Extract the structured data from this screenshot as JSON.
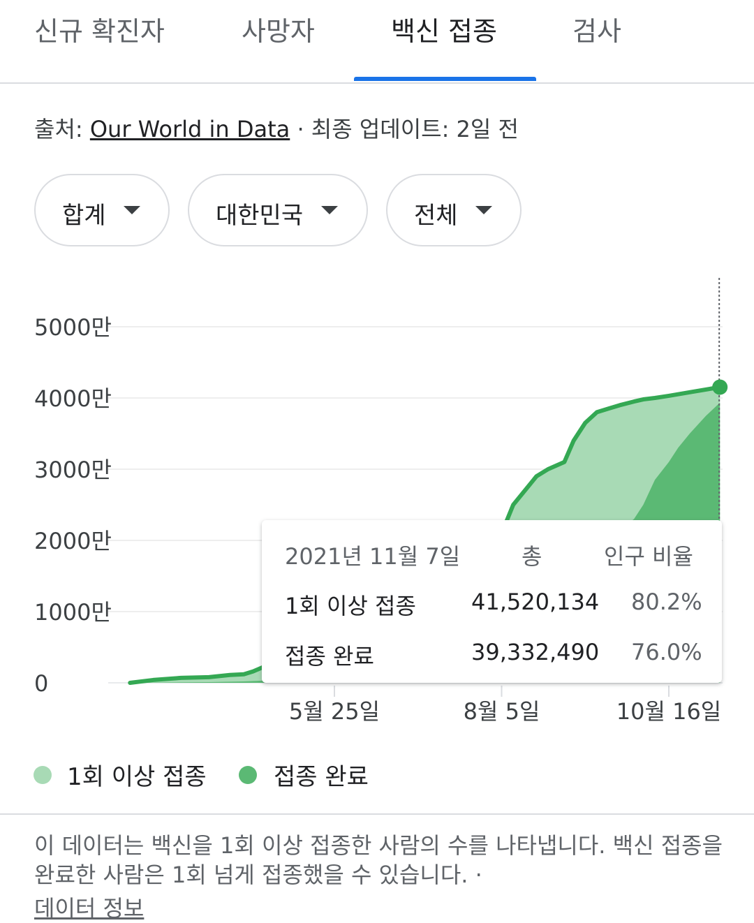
{
  "tabs": [
    {
      "label": "신규 확진자"
    },
    {
      "label": "사망자"
    },
    {
      "label": "백신 접종"
    },
    {
      "label": "검사"
    }
  ],
  "source": {
    "prefix": "출처: ",
    "link": "Our World in Data",
    "suffix": " · 최종 업데이트: 2일 전"
  },
  "filters": [
    {
      "label": "합계"
    },
    {
      "label": "대한민국"
    },
    {
      "label": "전체"
    }
  ],
  "tooltip": {
    "date": "2021년 11월 7일",
    "col_total": "총",
    "col_ratio": "인구 비율",
    "rows": [
      {
        "label": "1회 이상 접종",
        "total": "41,520,134",
        "ratio": "80.2%"
      },
      {
        "label": "접종 완료",
        "total": "39,332,490",
        "ratio": "76.0%"
      }
    ]
  },
  "legend": [
    {
      "label": "1회 이상 접종",
      "color": "#a8dab5"
    },
    {
      "label": "접종 완료",
      "color": "#5bb974"
    }
  ],
  "description": "이 데이터는 백신을 1회 이상 접종한 사람의 수를 나타냅니다. 백신 접종을 완료한 사람은 1회 넘게 접종했을 수 있습니다.  ·",
  "description_link": "데이터 정보",
  "colors": {
    "accent": "#1a73e8",
    "line": "#34a853",
    "area_first": "#a8dab5",
    "area_full": "#5bb974"
  },
  "chart_data": {
    "type": "area",
    "ylabel_unit": "만",
    "yticks": [
      "5000만",
      "4000만",
      "3000만",
      "2000만",
      "1000만",
      "0"
    ],
    "ytick_values": [
      50000000,
      40000000,
      30000000,
      20000000,
      10000000,
      0
    ],
    "xticks": [
      "5월 25일",
      "8월 5일",
      "10월 16일"
    ],
    "xtick_dates": [
      "2021-05-25",
      "2021-08-05",
      "2021-10-16"
    ],
    "ylim": [
      0,
      50000000
    ],
    "xlim": [
      "2021-02-26",
      "2021-11-07"
    ],
    "grid": true,
    "series": [
      {
        "name": "1회 이상 접종",
        "x": [
          "2021-02-26",
          "2021-03-08",
          "2021-03-20",
          "2021-04-01",
          "2021-04-10",
          "2021-04-16",
          "2021-04-20",
          "2021-04-25",
          "2021-05-01",
          "2021-05-15",
          "2021-06-01",
          "2021-06-15",
          "2021-07-01",
          "2021-07-15",
          "2021-07-26",
          "2021-08-01",
          "2021-08-05",
          "2021-08-10",
          "2021-08-15",
          "2021-08-20",
          "2021-08-25",
          "2021-09-01",
          "2021-09-05",
          "2021-09-10",
          "2021-09-15",
          "2021-09-20",
          "2021-09-25",
          "2021-10-01",
          "2021-10-05",
          "2021-10-10",
          "2021-10-16",
          "2021-10-25",
          "2021-11-07"
        ],
        "values": [
          0,
          400000,
          700000,
          800000,
          1100000,
          1200000,
          1600000,
          2300000,
          3200000,
          3800000,
          9000000,
          13000000,
          15000000,
          16500000,
          17000000,
          19000000,
          21000000,
          25000000,
          27000000,
          29000000,
          30000000,
          31000000,
          34000000,
          36500000,
          38000000,
          38500000,
          39000000,
          39500000,
          39800000,
          40000000,
          40300000,
          40800000,
          41520134
        ]
      },
      {
        "name": "접종 완료",
        "x": [
          "2021-02-26",
          "2021-04-01",
          "2021-04-16",
          "2021-05-01",
          "2021-06-01",
          "2021-06-20",
          "2021-07-10",
          "2021-07-26",
          "2021-08-05",
          "2021-08-20",
          "2021-09-01",
          "2021-09-10",
          "2021-09-20",
          "2021-09-25",
          "2021-10-01",
          "2021-10-05",
          "2021-10-10",
          "2021-10-16",
          "2021-10-20",
          "2021-10-25",
          "2021-11-01",
          "2021-11-07"
        ],
        "values": [
          0,
          100000,
          200000,
          400000,
          1500000,
          4000000,
          6000000,
          7000000,
          9000000,
          12000000,
          14000000,
          15000000,
          18000000,
          21500000,
          23000000,
          25000000,
          28500000,
          31000000,
          33000000,
          35000000,
          37500000,
          39332490
        ]
      }
    ]
  }
}
